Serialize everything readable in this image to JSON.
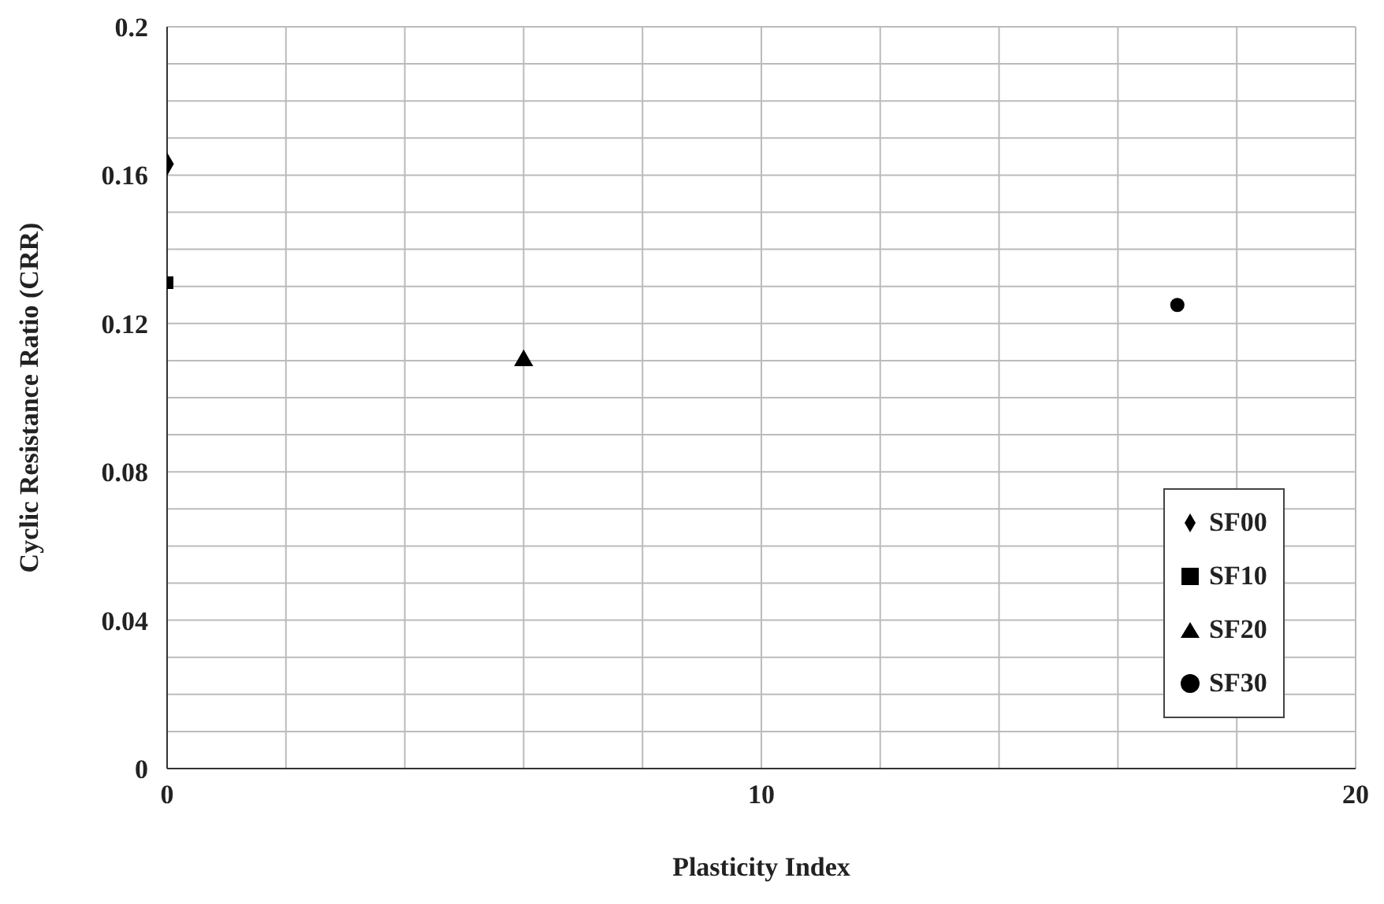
{
  "chart_data": {
    "type": "scatter",
    "xlabel": "Plasticity Index",
    "ylabel": "Cyclic Resistance Ratio (CRR)",
    "series": [
      {
        "name": "SF00",
        "color": "#000000",
        "marker": "diamond",
        "x": [
          0
        ],
        "values": [
          0.163
        ]
      },
      {
        "name": "SF10",
        "color": "#000000",
        "marker": "square",
        "x": [
          0
        ],
        "values": [
          0.131
        ]
      },
      {
        "name": "SF20",
        "color": "#000000",
        "marker": "triangle",
        "x": [
          6
        ],
        "values": [
          0.11
        ]
      },
      {
        "name": "SF30",
        "color": "#000000",
        "marker": "circle",
        "x": [
          17
        ],
        "values": [
          0.125
        ]
      }
    ],
    "xlim": [
      0,
      20
    ],
    "xticks": [
      0,
      {
        "value": 2,
        "label": null
      },
      {
        "value": 4,
        "label": null
      },
      {
        "value": 6,
        "label": null
      },
      {
        "value": 8,
        "label": null
      },
      10,
      {
        "value": 12,
        "label": null
      },
      {
        "value": 14,
        "label": null
      },
      {
        "value": 16,
        "label": null
      },
      {
        "value": 18,
        "label": null
      },
      20
    ],
    "ylim": [
      0,
      0.2
    ],
    "yticks": [
      0,
      {
        "value": 0.01,
        "label": null
      },
      {
        "value": 0.02,
        "label": null
      },
      {
        "value": 0.03,
        "label": null
      },
      0.04,
      {
        "value": 0.05,
        "label": null
      },
      {
        "value": 0.06,
        "label": null
      },
      {
        "value": 0.07,
        "label": null
      },
      0.08,
      {
        "value": 0.09,
        "label": null
      },
      {
        "value": 0.1,
        "label": null
      },
      {
        "value": 0.11,
        "label": null
      },
      0.12,
      {
        "value": 0.13,
        "label": null
      },
      {
        "value": 0.14,
        "label": null
      },
      {
        "value": 0.15,
        "label": null
      },
      0.16,
      {
        "value": 0.17,
        "label": null
      },
      {
        "value": 0.18,
        "label": null
      },
      {
        "value": 0.19,
        "label": null
      },
      0.2
    ],
    "grid": true,
    "legend": "bottom right"
  }
}
